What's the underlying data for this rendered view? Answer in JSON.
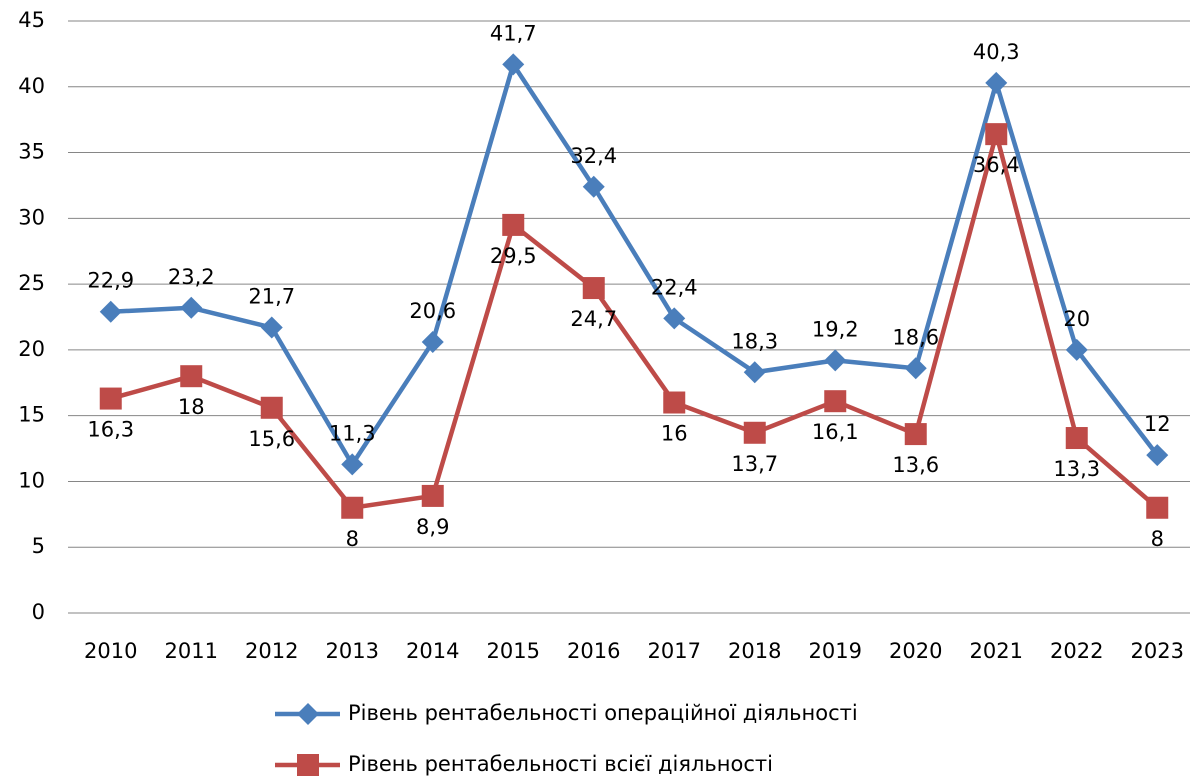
{
  "chart_data": {
    "type": "line",
    "categories": [
      "2010",
      "2011",
      "2012",
      "2013",
      "2014",
      "2015",
      "2016",
      "2017",
      "2018",
      "2019",
      "2020",
      "2021",
      "2022",
      "2023"
    ],
    "series": [
      {
        "name": "Рівень рентабельності операційної діяльності",
        "color": "#4a7ebb",
        "marker": "diamond",
        "values": [
          22.9,
          23.2,
          21.7,
          11.3,
          20.6,
          41.7,
          32.4,
          22.4,
          18.3,
          19.2,
          18.6,
          40.3,
          20,
          12
        ],
        "value_labels": [
          "22,9",
          "23,2",
          "21,7",
          "11,3",
          "20,6",
          "41,7",
          "32,4",
          "22,4",
          "18,3",
          "19,2",
          "18,6",
          "40,3",
          "20",
          "12"
        ]
      },
      {
        "name": "Рівень рентабельності всієї діяльності",
        "color": "#be4b48",
        "marker": "square",
        "values": [
          16.3,
          18,
          15.6,
          8,
          8.9,
          29.5,
          24.7,
          16,
          13.7,
          16.1,
          13.6,
          36.4,
          13.3,
          8
        ],
        "value_labels": [
          "16,3",
          "18",
          "15,6",
          "8",
          "8,9",
          "29,5",
          "24,7",
          "16",
          "13,7",
          "16,1",
          "13,6",
          "36,4",
          "13,3",
          "8"
        ]
      }
    ],
    "ylim": [
      0,
      45
    ],
    "yticks": [
      0,
      5,
      10,
      15,
      20,
      25,
      30,
      35,
      40,
      45
    ],
    "grid": true,
    "legend": "bottom"
  }
}
